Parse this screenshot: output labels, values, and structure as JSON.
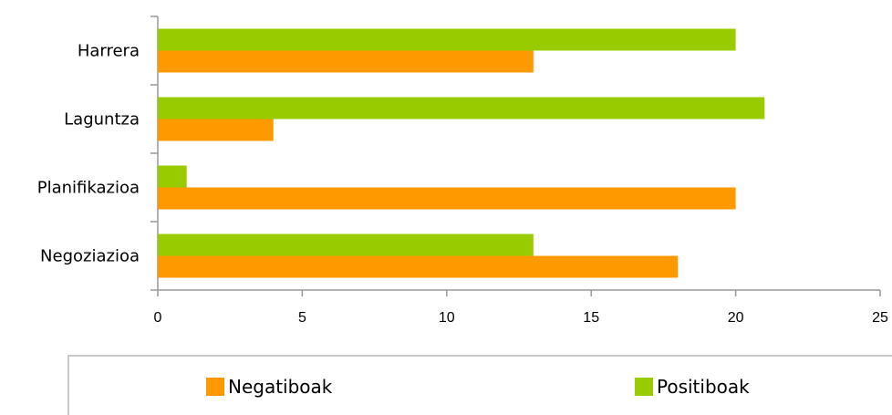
{
  "chart_data": {
    "type": "bar",
    "orientation": "horizontal",
    "categories": [
      "Harrera",
      "Laguntza",
      "Planifikazioa",
      "Negoziazioa"
    ],
    "series": [
      {
        "name": "Positiboak",
        "values": [
          20,
          21,
          1,
          13
        ],
        "color": "#99cc00"
      },
      {
        "name": "Negatiboak",
        "values": [
          13,
          4,
          20,
          18
        ],
        "color": "#ff9900"
      }
    ],
    "xlim": [
      0,
      25
    ],
    "xticks": [
      0,
      5,
      10,
      15,
      20,
      25
    ],
    "xlabel": "",
    "ylabel": "",
    "title": "",
    "grid": false,
    "legend_position": "bottom"
  },
  "legend": {
    "items": [
      {
        "label": "Negatiboak",
        "color": "#ff9900"
      },
      {
        "label": "Positiboak",
        "color": "#99cc00"
      }
    ]
  }
}
